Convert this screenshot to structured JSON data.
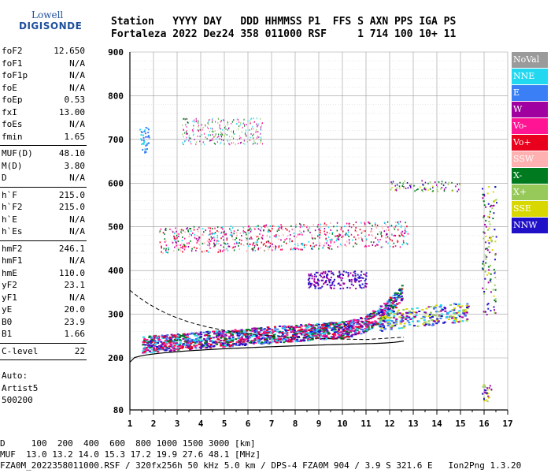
{
  "logo": {
    "line1": "Lowell",
    "line2": "DIGISONDE"
  },
  "header": {
    "line1": "Station   YYYY DAY   DDD HHMMSS P1  FFS S AXN PPS IGA PS",
    "line2": "Fortaleza 2022 Dez24 358 011000 RSF     1 714 100 10+ 11"
  },
  "params": [
    {
      "group": [
        {
          "k": "foF2",
          "v": "12.650"
        },
        {
          "k": "foF1",
          "v": "N/A"
        },
        {
          "k": "foF1p",
          "v": "N/A"
        },
        {
          "k": "foE",
          "v": "N/A"
        },
        {
          "k": "foEp",
          "v": "0.53"
        },
        {
          "k": "fxI",
          "v": "13.00"
        },
        {
          "k": "foEs",
          "v": "N/A"
        },
        {
          "k": "fmin",
          "v": "1.65"
        }
      ]
    },
    {
      "group": [
        {
          "k": "MUF(D)",
          "v": "48.10"
        },
        {
          "k": "M(D)",
          "v": "3.80"
        },
        {
          "k": "D",
          "v": "N/A"
        }
      ]
    },
    {
      "group": [
        {
          "k": "h`F",
          "v": "215.0"
        },
        {
          "k": "h`F2",
          "v": "215.0"
        },
        {
          "k": "h`E",
          "v": "N/A"
        },
        {
          "k": "h`Es",
          "v": "N/A"
        }
      ]
    },
    {
      "group": [
        {
          "k": "hmF2",
          "v": "246.1"
        },
        {
          "k": "hmF1",
          "v": "N/A"
        },
        {
          "k": "hmE",
          "v": "110.0"
        },
        {
          "k": "yF2",
          "v": "23.1"
        },
        {
          "k": "yF1",
          "v": "N/A"
        },
        {
          "k": "yE",
          "v": "20.0"
        },
        {
          "k": "B0",
          "v": "23.9"
        },
        {
          "k": "B1",
          "v": "1.66"
        }
      ]
    },
    {
      "group": [
        {
          "k": "C-level",
          "v": "22"
        }
      ]
    }
  ],
  "auto": [
    "Auto:",
    "Artist5",
    "500200"
  ],
  "legend": [
    {
      "label": "NoVal",
      "color": "#9a9a9a"
    },
    {
      "label": "NNE",
      "color": "#22d8f0"
    },
    {
      "label": "E",
      "color": "#3a7ff5"
    },
    {
      "label": "W",
      "color": "#a000a0"
    },
    {
      "label": "Vo-",
      "color": "#ff1493"
    },
    {
      "label": "Vo+",
      "color": "#e8001c"
    },
    {
      "label": "SSW",
      "color": "#ffb0b0"
    },
    {
      "label": "X-",
      "color": "#007a1e"
    },
    {
      "label": "X+",
      "color": "#96c85a"
    },
    {
      "label": "SSE",
      "color": "#d8d800"
    },
    {
      "label": "NNW",
      "color": "#2010c8"
    }
  ],
  "chart_data": {
    "type": "scatter",
    "xlim": [
      1,
      17
    ],
    "ylim": [
      80,
      900
    ],
    "x_ticks": [
      "1",
      "2",
      "3",
      "4",
      "5",
      "6",
      "7",
      "8",
      "9",
      "10",
      "11",
      "12",
      "13",
      "14",
      "15",
      "16",
      "17"
    ],
    "y_ticks": [
      "80",
      "200",
      "300",
      "400",
      "500",
      "600",
      "700",
      "800",
      "900"
    ],
    "grid": true,
    "legend_position": "right"
  },
  "footer": {
    "line1": "D     100  200  400  600  800 1000 1500 3000 [km]",
    "line2": "MUF  13.0 13.2 14.0 15.3 17.2 19.9 27.6 48.1 [MHz]",
    "line3": "FZA0M_2022358011000.RSF / 320fx256h 50 kHz 5.0 km / DPS-4 FZA0M 904 / 3.9 S 321.6 E   Ion2Png 1.3.20"
  }
}
